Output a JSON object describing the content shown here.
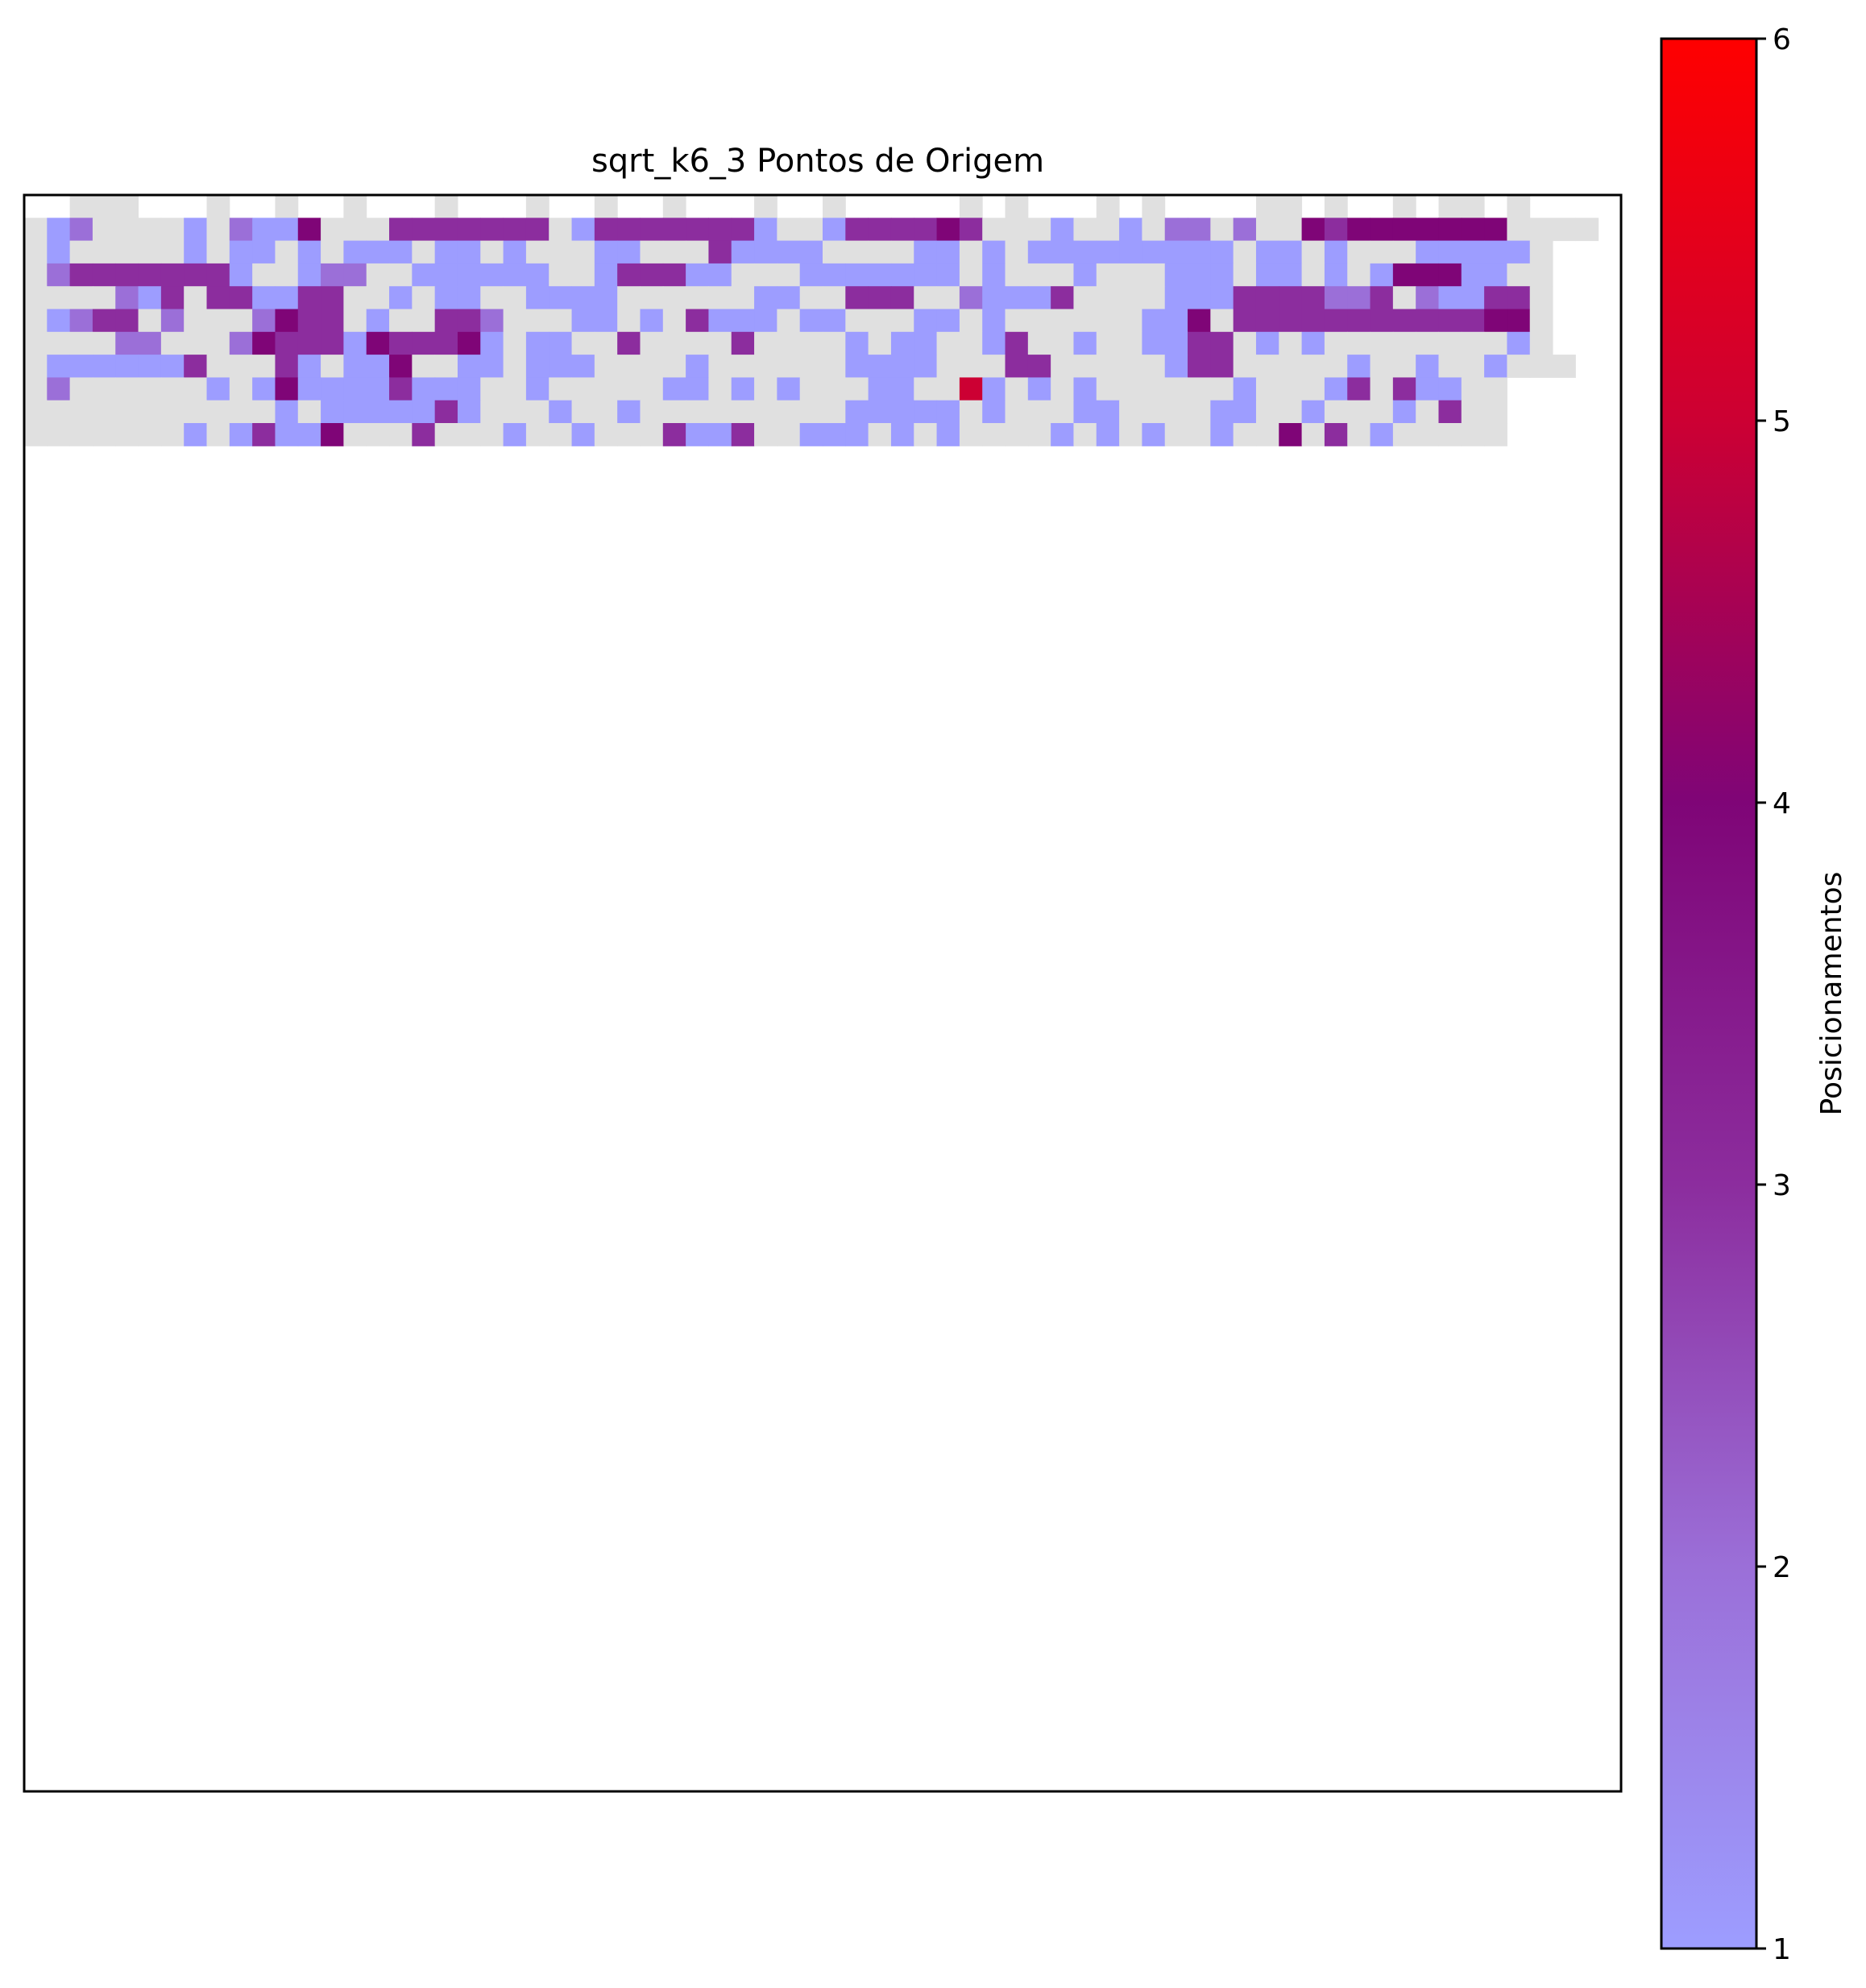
{
  "chart_data": {
    "type": "heatmap",
    "title": "sqrt_k6_3 Pontos de Origem",
    "xlabel": "",
    "ylabel": "",
    "grid_size": [
      70,
      70
    ],
    "colorbar": {
      "label": "Posicionamentos",
      "range": [
        1,
        6
      ],
      "ticks": [
        "1",
        "2",
        "3",
        "4",
        "5",
        "6"
      ],
      "colors": [
        "#9d9dff",
        "#9b6fd8",
        "#8c2d9e",
        "#7f0577",
        "#cc0033",
        "#ff0000"
      ],
      "zero_color": "#e0e0e0"
    },
    "rows_note": "values 0 = empty/grey, 1-6 = placement counts; blank = not plotted",
    "rows": [
      "..000...0..0..0...0...0..0..0...0..0.....0.0...0.0....00.0..0.00.0...",
      "012000010211400033333330133333331001333343000100102202004344444440000",
      "0100000101101011101101000110003111100001101011111111101101000111110",
      "0233333331001220011111100133311000111111101000100011101101014441100",
      "0000213033113300101100111100000011003330021113000011133332230211330",
      "0123302000243301003320001101031110110001101000000114033333333333440",
      "0000220002433314333410110030000300001011001300100113301010000000010",
      "01111113000310114001101110000100000011110003300000133000001001001000",
      "02000000101411113111001000001101010001100510101000000100013031100",
      "00000000000101111131000100100000000011111010001100001100100010300",
      "00000001013114000300010010003113001110101000010101001004030100000"
    ]
  }
}
